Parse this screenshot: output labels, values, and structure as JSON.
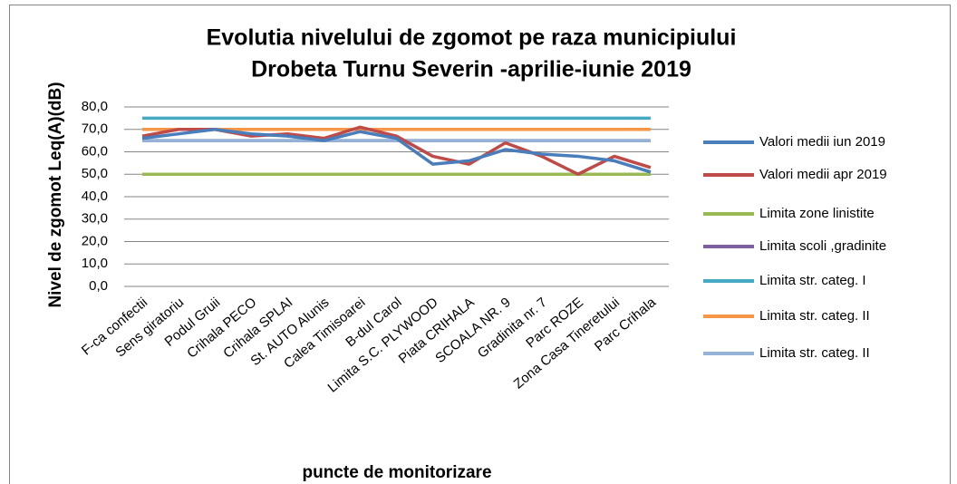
{
  "chart_data": {
    "type": "line",
    "title": [
      "Evolutia nivelului de zgomot pe raza municipiului",
      "Drobeta Turnu Severin -aprilie-iunie 2019"
    ],
    "y_label": "Nivel de zgomot Leq(A)(dB)",
    "x_label": "puncte de monitorizare",
    "categories": [
      "F-ca confectii",
      "Sens giratoriu",
      "Podul Gruii",
      "Crihala PECO",
      "Crihala SPLAI",
      "St. AUTO Alunis",
      "Calea Timisoarei",
      "B-dul Carol",
      "Limita S.C. PLYWOOD",
      "Piata CRIHALA",
      "SCOALA NR. 9",
      "Gradinita nr. 7",
      "Parc ROZE",
      "Zona Casa Tineretului",
      "Parc Crihala"
    ],
    "series": [
      {
        "name": "Valori medii iun 2019",
        "color": "#4a7ebb",
        "values": [
          66,
          68,
          70,
          68,
          67,
          65,
          69,
          66,
          54.5,
          56,
          61,
          59,
          58,
          56,
          51
        ]
      },
      {
        "name": "Valori medii apr 2019",
        "color": "#be4b48",
        "values": [
          67,
          70,
          70,
          67,
          68,
          66,
          71,
          67,
          58,
          54.5,
          64,
          58,
          50,
          58,
          53
        ]
      },
      {
        "name": "Limita zone linistite",
        "color": "#98b954",
        "values": [
          50,
          50,
          50,
          50,
          50,
          50,
          50,
          50,
          50,
          50,
          50,
          50,
          50,
          50,
          50
        ]
      },
      {
        "name": "Limita scoli ,gradinite",
        "color": "#7d60a0",
        "values": [
          65,
          65,
          65,
          65,
          65,
          65,
          65,
          65,
          65,
          65,
          65,
          65,
          65,
          65,
          65
        ]
      },
      {
        "name": "Limita str. categ. I",
        "color": "#46aac5",
        "values": [
          75,
          75,
          75,
          75,
          75,
          75,
          75,
          75,
          75,
          75,
          75,
          75,
          75,
          75,
          75
        ]
      },
      {
        "name": "Limita str. categ. II",
        "color": "#f79646",
        "values": [
          70,
          70,
          70,
          70,
          70,
          70,
          70,
          70,
          70,
          70,
          70,
          70,
          70,
          70,
          70
        ]
      },
      {
        "name": "Limita str. categ. II",
        "color": "#95b3d7",
        "values": [
          65,
          65,
          65,
          65,
          65,
          65,
          65,
          65,
          65,
          65,
          65,
          65,
          65,
          65,
          65
        ]
      }
    ],
    "ylim": [
      0,
      80
    ],
    "yticks": [
      {
        "value": 0,
        "label": "0,0"
      },
      {
        "value": 10,
        "label": "10,0"
      },
      {
        "value": 20,
        "label": "20,0"
      },
      {
        "value": 30,
        "label": "30,0"
      },
      {
        "value": 40,
        "label": "40,0"
      },
      {
        "value": 50,
        "label": "50,0"
      },
      {
        "value": 60,
        "label": "60,0"
      },
      {
        "value": 70,
        "label": "70,0"
      },
      {
        "value": 80,
        "label": "80,0"
      }
    ],
    "grid": true,
    "legend": "right"
  }
}
